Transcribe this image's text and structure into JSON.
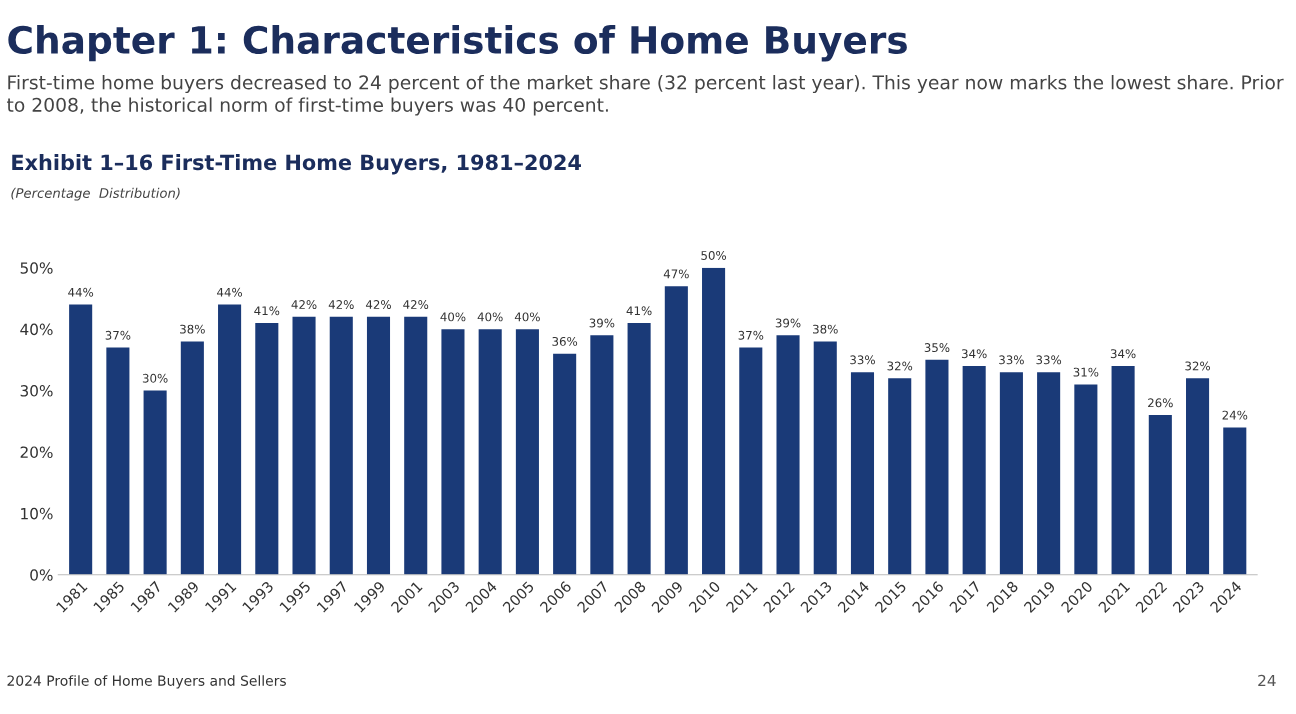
{
  "chart_data": {
    "type": "bar",
    "title": "Chapter 1: Characteristics of Home Buyers",
    "subtitle": "First-time home buyers decreased to 24 percent of the market share (32 percent last year). This year now marks the lowest share. Prior to 2008, the historical norm of first-time buyers was 40 percent.",
    "annotations": [
      "Exhibit 1–16 First-Time Home Buyers, 1981–2024",
      "(Percentage  Distribution)",
      "2024 Profile of Home Buyers and Sellers",
      "24"
    ],
    "categories": [
      "1981",
      "1985",
      "1987",
      "1989",
      "1991",
      "1993",
      "1995",
      "1997",
      "1999",
      "2001",
      "2003",
      "2004",
      "2005",
      "2006",
      "2007",
      "2008",
      "2009",
      "2010",
      "2011",
      "2012",
      "2013",
      "2014",
      "2015",
      "2016",
      "2017",
      "2018",
      "2019",
      "2020",
      "2021",
      "2022",
      "2023",
      "2024"
    ],
    "values": [
      44,
      37,
      30,
      38,
      44,
      41,
      42,
      42,
      42,
      42,
      40,
      40,
      40,
      36,
      39,
      41,
      47,
      50,
      37,
      39,
      38,
      33,
      32,
      35,
      34,
      33,
      33,
      31,
      34,
      26,
      32,
      24
    ],
    "value_labels": [
      "44%",
      "37%",
      "30%",
      "38%",
      "44%",
      "41%",
      "42%",
      "42%",
      "42%",
      "42%",
      "40%",
      "40%",
      "40%",
      "36%",
      "39%",
      "41%",
      "47%",
      "50%",
      "37%",
      "39%",
      "38%",
      "33%",
      "32%",
      "35%",
      "34%",
      "33%",
      "33%",
      "31%",
      "34%",
      "26%",
      "32%",
      "24%"
    ],
    "color": "#1a3a78",
    "ylim": [
      0,
      50
    ],
    "yticks": [
      {
        "value": 0,
        "label": "0%"
      },
      {
        "value": 10,
        "label": "10%"
      },
      {
        "value": 20,
        "label": "20%"
      },
      {
        "value": 30,
        "label": "30%"
      },
      {
        "value": 40,
        "label": "40%"
      },
      {
        "value": 50,
        "label": "50%"
      }
    ],
    "grid": false,
    "legend": false
  }
}
